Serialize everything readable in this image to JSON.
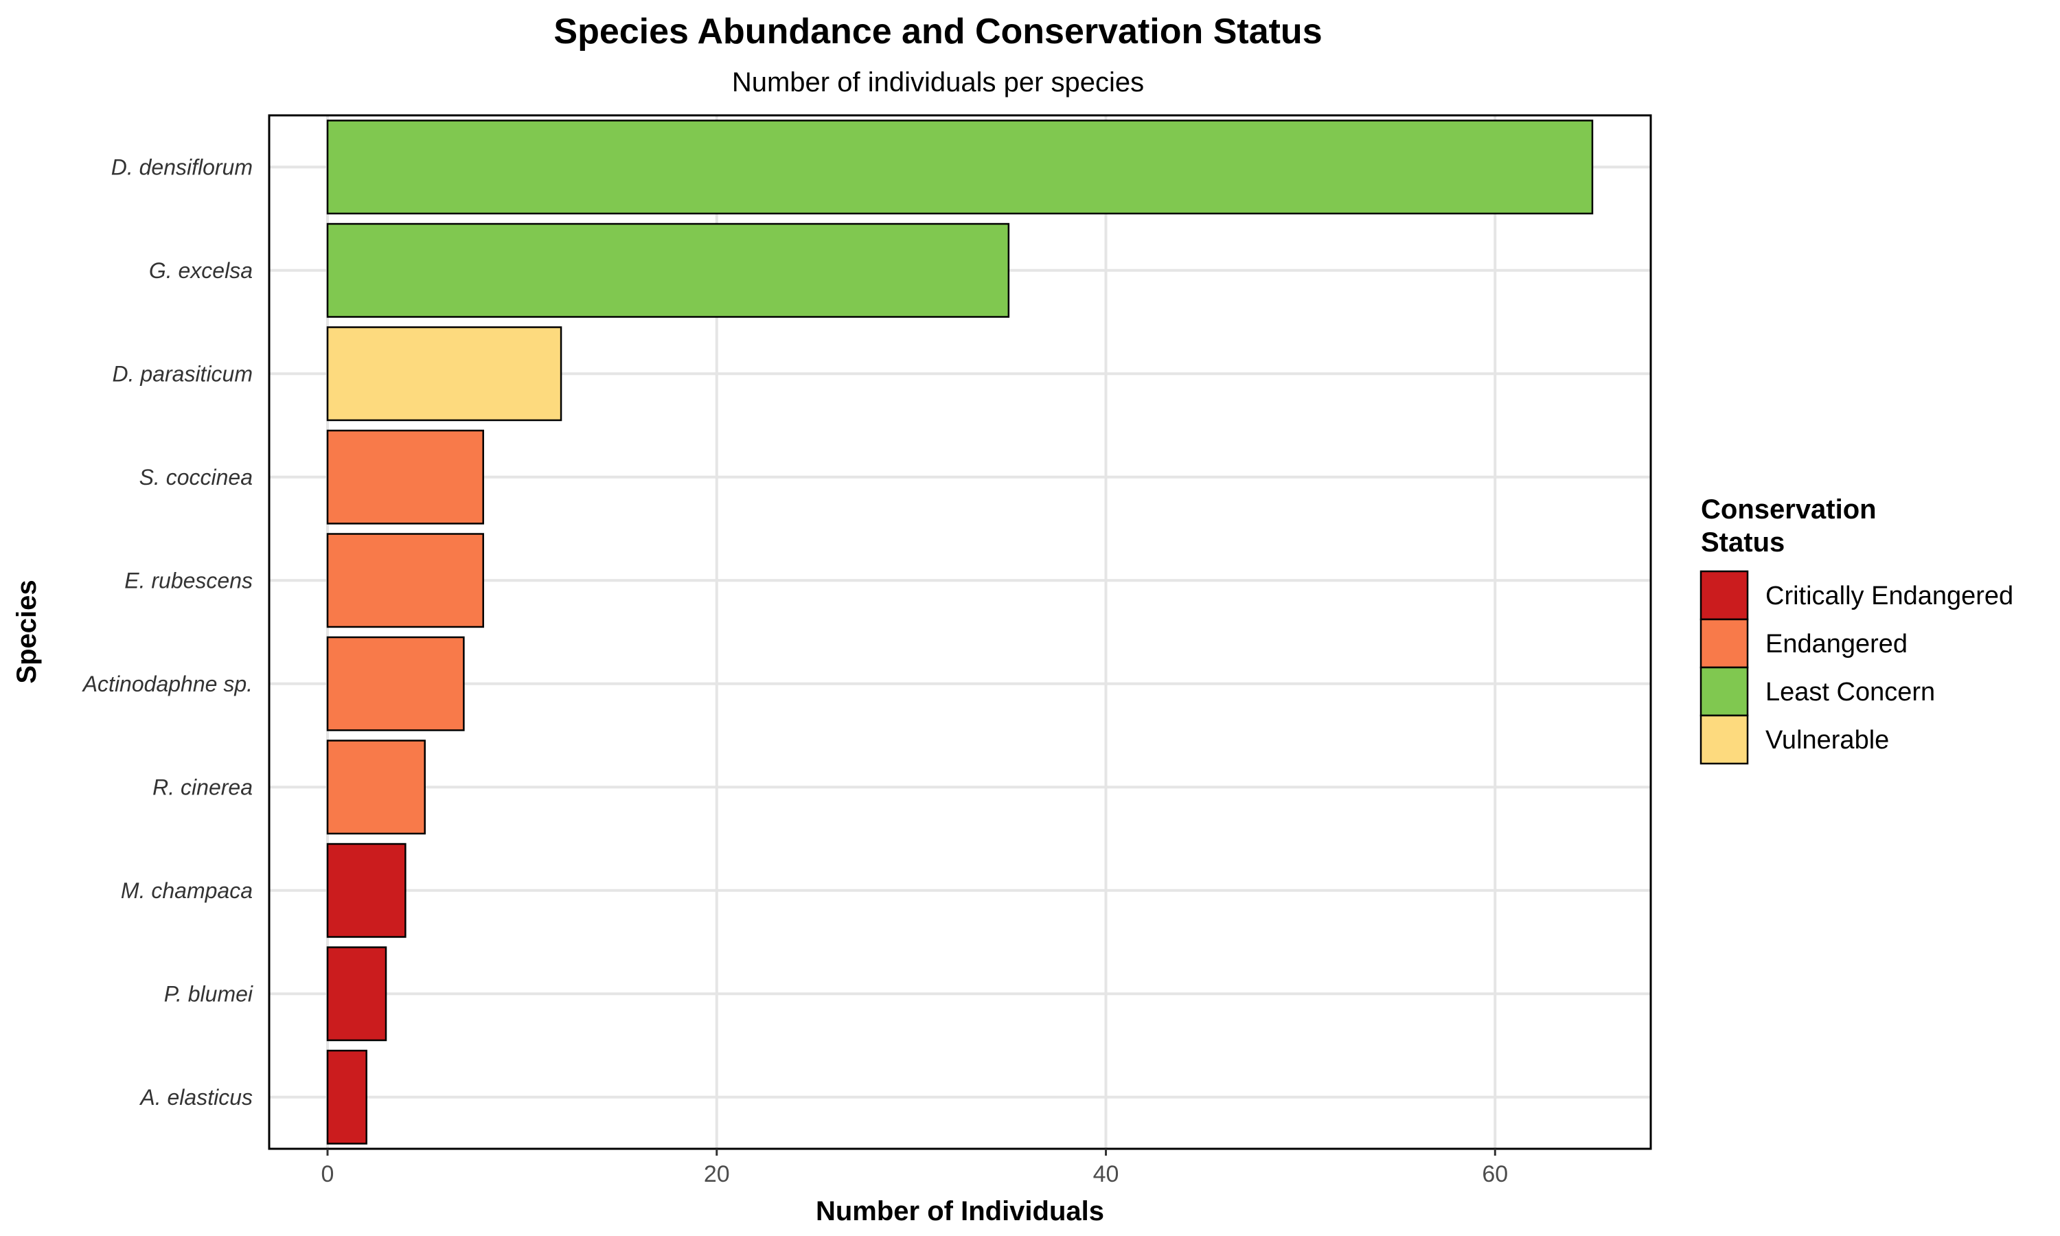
{
  "chart_data": {
    "type": "bar",
    "orientation": "horizontal",
    "title": "Species Abundance and Conservation Status",
    "subtitle": "Number of individuals per species",
    "xlabel": "Number of Individuals",
    "ylabel": "Species",
    "xlim": [
      -3,
      68
    ],
    "x_ticks": [
      0,
      20,
      40,
      60
    ],
    "grid": true,
    "legend": {
      "title_lines": [
        "Conservation",
        "Status"
      ],
      "position": "right",
      "entries": [
        {
          "name": "Critically Endangered",
          "color": "#CB1C1E"
        },
        {
          "name": "Endangered",
          "color": "#F87A4A"
        },
        {
          "name": "Least Concern",
          "color": "#80C850"
        },
        {
          "name": "Vulnerable",
          "color": "#FDDA7E"
        }
      ]
    },
    "bars": [
      {
        "species": "D. densiflorum",
        "value": 65,
        "status": "Least Concern"
      },
      {
        "species": "G. excelsa",
        "value": 35,
        "status": "Least Concern"
      },
      {
        "species": "D. parasiticum",
        "value": 12,
        "status": "Vulnerable"
      },
      {
        "species": "S. coccinea",
        "value": 8,
        "status": "Endangered"
      },
      {
        "species": "E. rubescens",
        "value": 8,
        "status": "Endangered"
      },
      {
        "species": "Actinodaphne sp.",
        "value": 7,
        "status": "Endangered"
      },
      {
        "species": "R. cinerea",
        "value": 5,
        "status": "Endangered"
      },
      {
        "species": "M. champaca",
        "value": 4,
        "status": "Critically Endangered"
      },
      {
        "species": "P. blumei",
        "value": 3,
        "status": "Critically Endangered"
      },
      {
        "species": "A. elasticus",
        "value": 2,
        "status": "Critically Endangered"
      }
    ]
  }
}
